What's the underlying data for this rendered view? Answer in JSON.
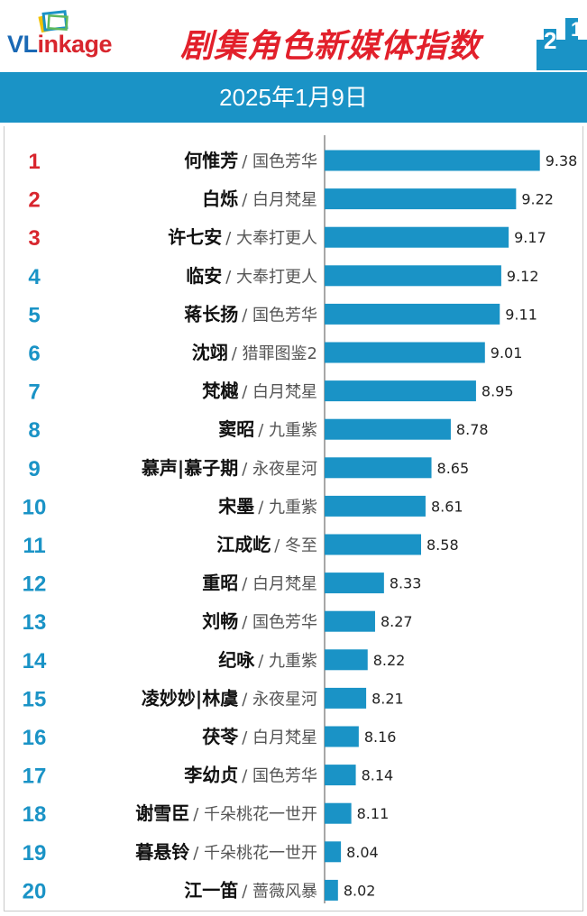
{
  "brand": {
    "vl": "VL",
    "rest": "inkage"
  },
  "title": "剧集角色新媒体指数",
  "date": "2025年1月9日",
  "colors": {
    "bar": "#1a93c6",
    "rank_top": "#d8262e",
    "rank_other": "#1a93c6",
    "band": "#1a93c6"
  },
  "chart_data": {
    "type": "bar",
    "orientation": "horizontal",
    "title": "剧集角色新媒体指数",
    "subtitle": "2025年1月9日",
    "xlim": [
      7.93,
      9.4
    ],
    "grid": false,
    "data_labels": true,
    "rows": [
      {
        "rank": "1",
        "name": "何惟芳",
        "show": "国色芳华",
        "value": 9.38
      },
      {
        "rank": "2",
        "name": "白烁",
        "show": "白月梵星",
        "value": 9.22
      },
      {
        "rank": "3",
        "name": "许七安",
        "show": "大奉打更人",
        "value": 9.17
      },
      {
        "rank": "4",
        "name": "临安",
        "show": "大奉打更人",
        "value": 9.12
      },
      {
        "rank": "5",
        "name": "蒋长扬",
        "show": "国色芳华",
        "value": 9.11
      },
      {
        "rank": "6",
        "name": "沈翊",
        "show": "猎罪图鉴2",
        "value": 9.01
      },
      {
        "rank": "7",
        "name": "梵樾",
        "show": "白月梵星",
        "value": 8.95
      },
      {
        "rank": "8",
        "name": "窦昭",
        "show": "九重紫",
        "value": 8.78
      },
      {
        "rank": "9",
        "name": "慕声|慕子期",
        "show": "永夜星河",
        "value": 8.65
      },
      {
        "rank": "10",
        "name": "宋墨",
        "show": "九重紫",
        "value": 8.61
      },
      {
        "rank": "11",
        "name": "江成屹",
        "show": "冬至",
        "value": 8.58
      },
      {
        "rank": "12",
        "name": "重昭",
        "show": "白月梵星",
        "value": 8.33
      },
      {
        "rank": "13",
        "name": "刘畅",
        "show": "国色芳华",
        "value": 8.27
      },
      {
        "rank": "14",
        "name": "纪咏",
        "show": "九重紫",
        "value": 8.22
      },
      {
        "rank": "15",
        "name": "凌妙妙|林虞",
        "show": "永夜星河",
        "value": 8.21
      },
      {
        "rank": "16",
        "name": "茯苓",
        "show": "白月梵星",
        "value": 8.16
      },
      {
        "rank": "17",
        "name": "李幼贞",
        "show": "国色芳华",
        "value": 8.14
      },
      {
        "rank": "18",
        "name": "谢雪臣",
        "show": "千朵桃花一世开",
        "value": 8.11
      },
      {
        "rank": "19",
        "name": "暮悬铃",
        "show": "千朵桃花一世开",
        "value": 8.04
      },
      {
        "rank": "20",
        "name": "江一笛",
        "show": "蔷薇风暴",
        "value": 8.02
      }
    ]
  }
}
